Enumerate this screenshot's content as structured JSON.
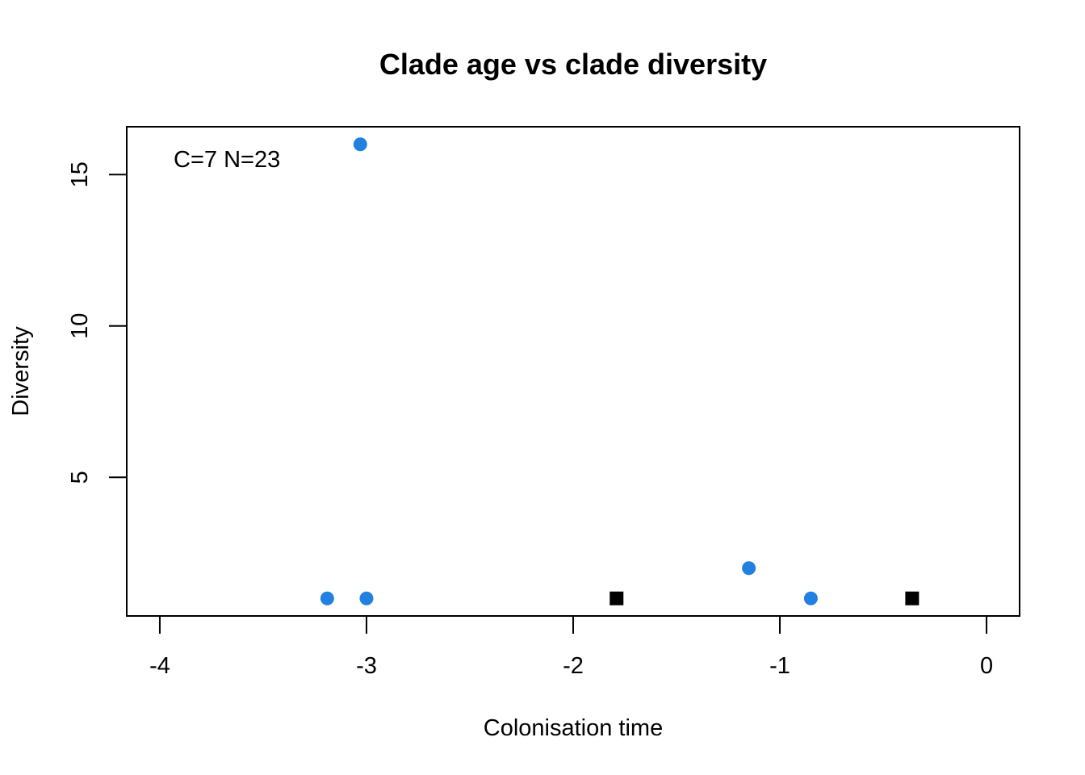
{
  "chart_data": {
    "type": "scatter",
    "title": "Clade age vs clade diversity",
    "xlabel": "Colonisation time",
    "ylabel": "Diversity",
    "xlim": [
      -4.16,
      0.16
    ],
    "ylim": [
      0.42,
      16.58
    ],
    "x_ticks": [
      -4,
      -3,
      -2,
      -1,
      0
    ],
    "y_ticks": [
      5,
      10,
      15
    ],
    "annotation": "C=7 N=23",
    "colors": {
      "clade": "#2180E0",
      "special": "#000000"
    },
    "series": [
      {
        "name": "clade",
        "marker": "circle",
        "points": [
          {
            "x": -3.03,
            "y": 16
          },
          {
            "x": -3.19,
            "y": 1
          },
          {
            "x": -3.0,
            "y": 1
          },
          {
            "x": -1.15,
            "y": 2
          },
          {
            "x": -0.85,
            "y": 1
          }
        ]
      },
      {
        "name": "special",
        "marker": "square",
        "points": [
          {
            "x": -1.79,
            "y": 1
          },
          {
            "x": -0.36,
            "y": 1
          }
        ]
      }
    ]
  }
}
